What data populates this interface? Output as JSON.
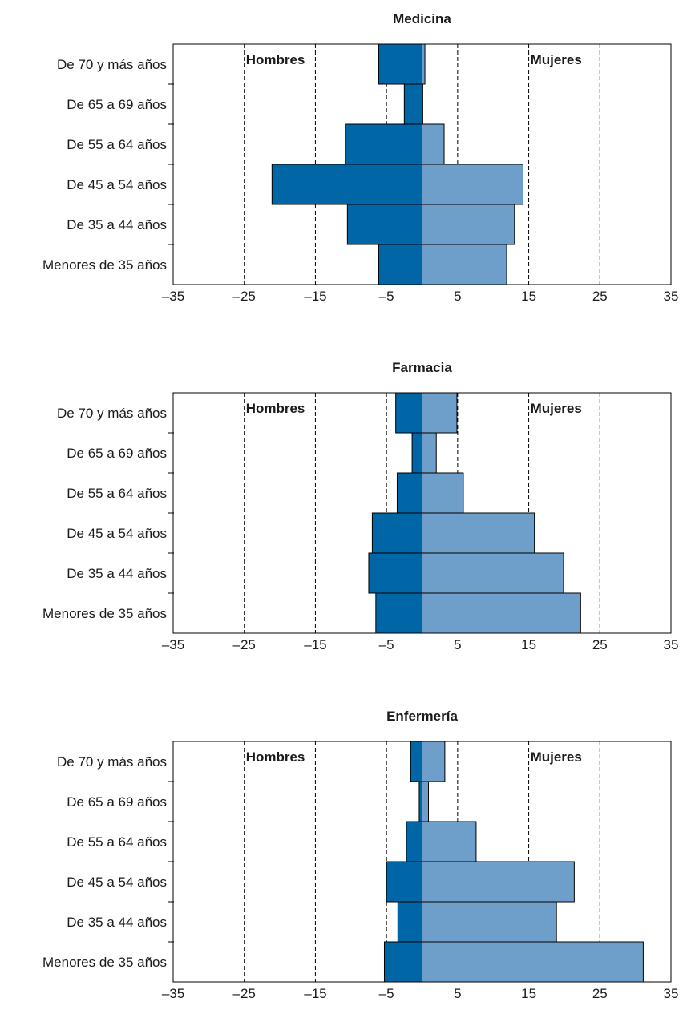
{
  "colors": {
    "men": "#0066a6",
    "women": "#6e9fcb",
    "frame": "#000000",
    "grid": "#000000"
  },
  "chart_data": [
    {
      "type": "bar",
      "title": "Medicina",
      "categories": [
        "De 70 y más años",
        "De 65 a 69 años",
        "De 55 a 64 años",
        "De 45 a 54 años",
        "De 35 a 44 años",
        "Menores de 35 años"
      ],
      "series": [
        {
          "name": "Hombres",
          "values": [
            -6.1,
            -2.5,
            -10.8,
            -21.1,
            -10.5,
            -6.1
          ]
        },
        {
          "name": "Mujeres",
          "values": [
            0.4,
            0.1,
            3.1,
            14.2,
            13.0,
            11.9
          ]
        }
      ],
      "xticks": [
        "–35",
        "–25",
        "–15",
        "–5",
        "5",
        "15",
        "25",
        "35"
      ],
      "xlim": [
        -35,
        35
      ],
      "grid": true
    },
    {
      "type": "bar",
      "title": "Farmacia",
      "categories": [
        "De 70 y más años",
        "De 65 a 69 años",
        "De 55 a 64 años",
        "De 45 a 54 años",
        "De 35 a 44 años",
        "Menores de 35 años"
      ],
      "series": [
        {
          "name": "Hombres",
          "values": [
            -3.7,
            -1.4,
            -3.5,
            -7.0,
            -7.5,
            -6.5
          ]
        },
        {
          "name": "Mujeres",
          "values": [
            4.9,
            2.0,
            5.8,
            15.8,
            19.9,
            22.3
          ]
        }
      ],
      "xticks": [
        "–35",
        "–25",
        "–15",
        "–5",
        "5",
        "15",
        "25",
        "35"
      ],
      "xlim": [
        -35,
        35
      ],
      "grid": true
    },
    {
      "type": "bar",
      "title": "Enfermería",
      "categories": [
        "De 70 y más años",
        "De 65 a 69 años",
        "De 55 a 64 años",
        "De 45 a 54 años",
        "De 35 a 44 años",
        "Menores de 35 años"
      ],
      "series": [
        {
          "name": "Hombres",
          "values": [
            -1.6,
            -0.4,
            -2.2,
            -5.0,
            -3.4,
            -5.3
          ]
        },
        {
          "name": "Mujeres",
          "values": [
            3.2,
            0.9,
            7.6,
            21.4,
            18.9,
            31.1
          ]
        }
      ],
      "xticks": [
        "–35",
        "–25",
        "–15",
        "–5",
        "5",
        "15",
        "25",
        "35"
      ],
      "xlim": [
        -35,
        35
      ],
      "grid": true
    }
  ]
}
